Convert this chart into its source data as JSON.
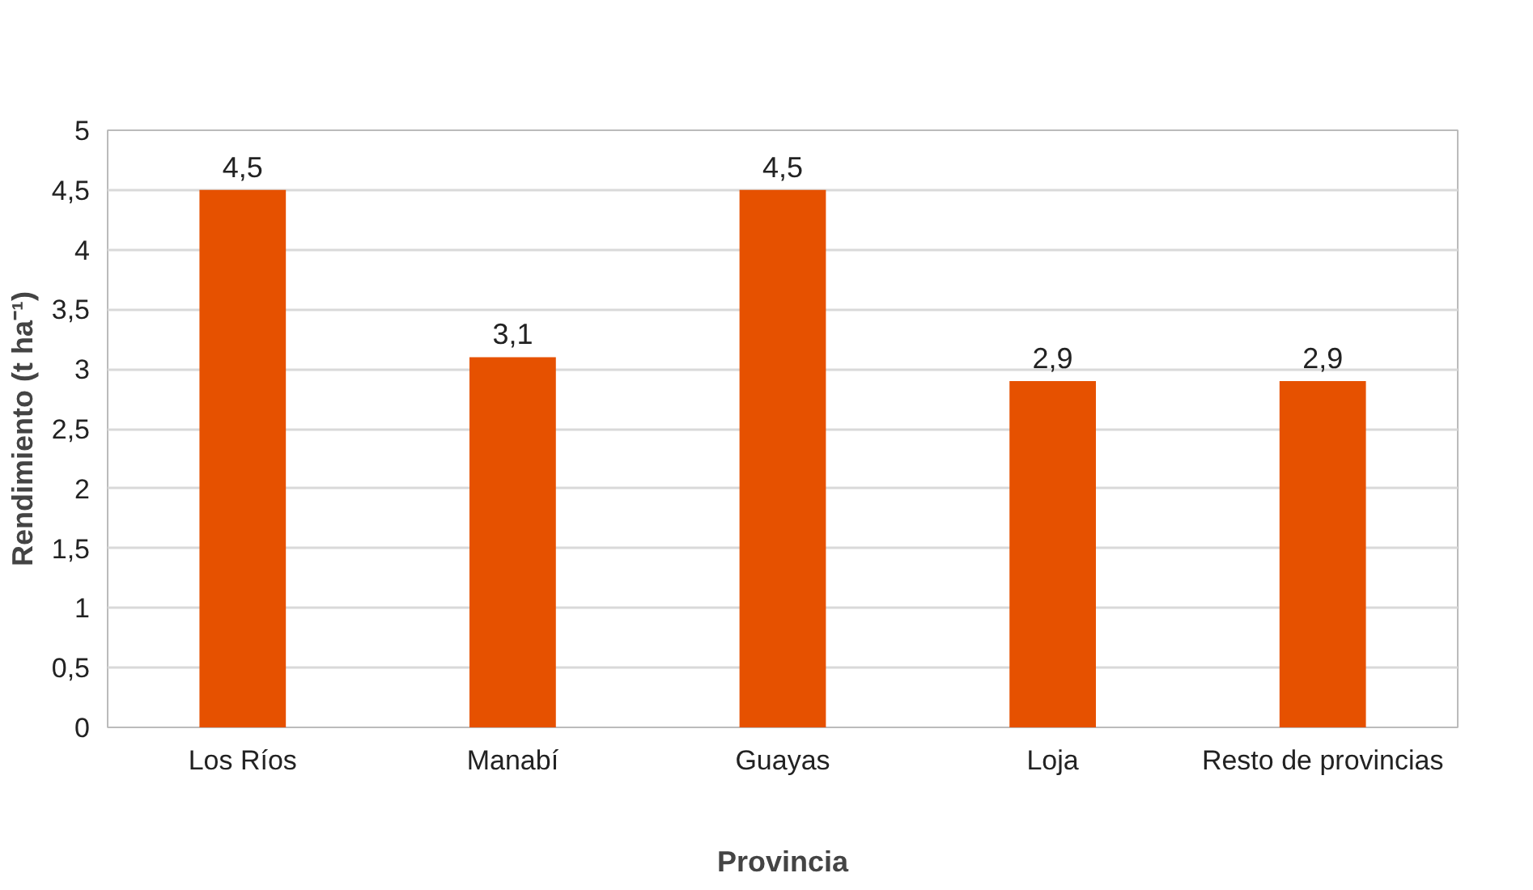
{
  "chart_data": {
    "type": "bar",
    "xlabel": "Provincia",
    "ylabel": "Rendimiento (t ha⁻¹)",
    "categories": [
      "Los Ríos",
      "Manabí",
      "Guayas",
      "Loja",
      "Resto de provincias"
    ],
    "values": [
      4.5,
      3.1,
      4.5,
      2.9,
      2.9
    ],
    "value_labels": [
      "4,5",
      "3,1",
      "4,5",
      "2,9",
      "2,9"
    ],
    "color": "#e65100",
    "ylim": [
      0,
      5
    ],
    "yticks": [
      0,
      {
        "value": 0.5,
        "label": "0,5"
      },
      1,
      {
        "value": 1.5,
        "label": "1,5"
      },
      2,
      {
        "value": 2.5,
        "label": "2,5"
      },
      3,
      {
        "value": 3.5,
        "label": "3,5"
      },
      4,
      {
        "value": 4.5,
        "label": "4,5"
      },
      5
    ],
    "grid": "y"
  }
}
